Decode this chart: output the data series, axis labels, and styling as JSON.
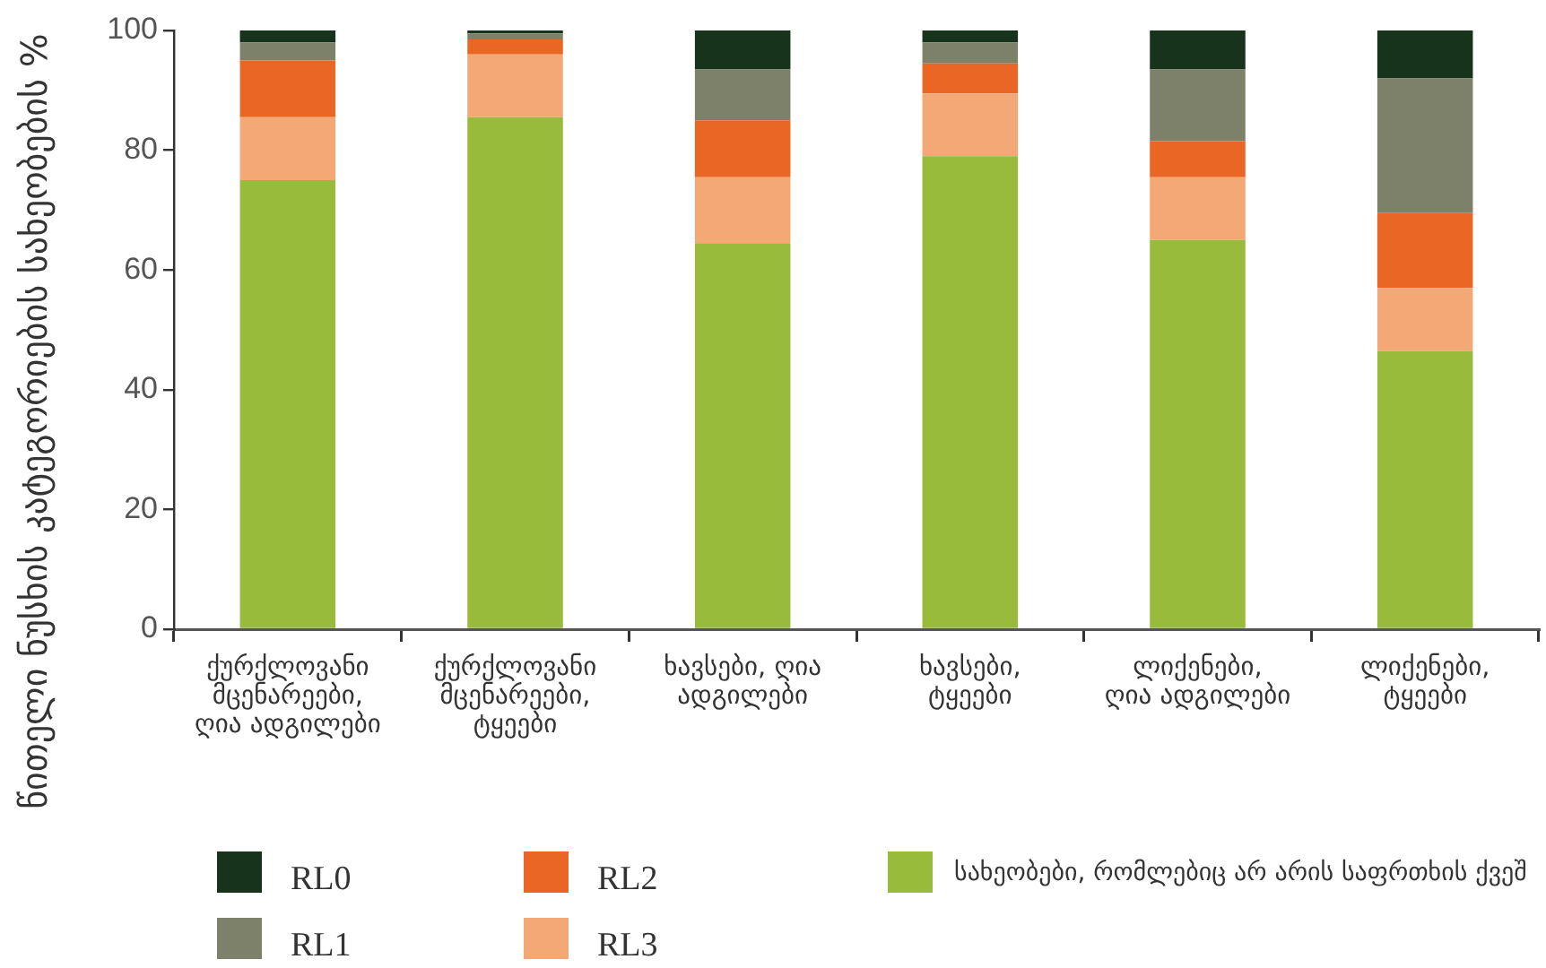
{
  "chart_data": {
    "type": "bar",
    "stacked": true,
    "ylabel": "წითელი ნუსხის კატეგორიების სახეობების %",
    "categories": [
      "ქურქლოვანი\nმცენარეები,\nღია ადგილები",
      "ქურქლოვანი\nმცენარეები,\nტყეები",
      "ხავსები, ღია\nადგილები",
      "ხავსები,\nტყეები",
      "ლიქენები,\nღია ადგილები",
      "ლიქენები,\nტყეები"
    ],
    "series": [
      {
        "name": "სახეობები, რომლებიც არ არის საფრთხის ქვეშ",
        "color": "#99bb3c",
        "values": [
          75,
          85.5,
          64.5,
          79,
          65,
          46.5
        ]
      },
      {
        "name": "RL3",
        "color": "#f4a875",
        "values": [
          10.5,
          10.5,
          11,
          10.5,
          10.5,
          10.5
        ]
      },
      {
        "name": "RL2",
        "color": "#e96625",
        "values": [
          9.5,
          2.5,
          9.5,
          5,
          6,
          12.5
        ]
      },
      {
        "name": "RL1",
        "color": "#7e8169",
        "values": [
          3,
          1,
          8.5,
          3.5,
          12,
          22.5
        ]
      },
      {
        "name": "RL0",
        "color": "#18331b",
        "values": [
          2,
          0.5,
          6.5,
          2,
          6.5,
          8
        ]
      }
    ],
    "ylim": [
      0,
      100
    ],
    "yticks": [
      0,
      20,
      40,
      60,
      80,
      100
    ],
    "grid": false,
    "legend": "bottom"
  }
}
